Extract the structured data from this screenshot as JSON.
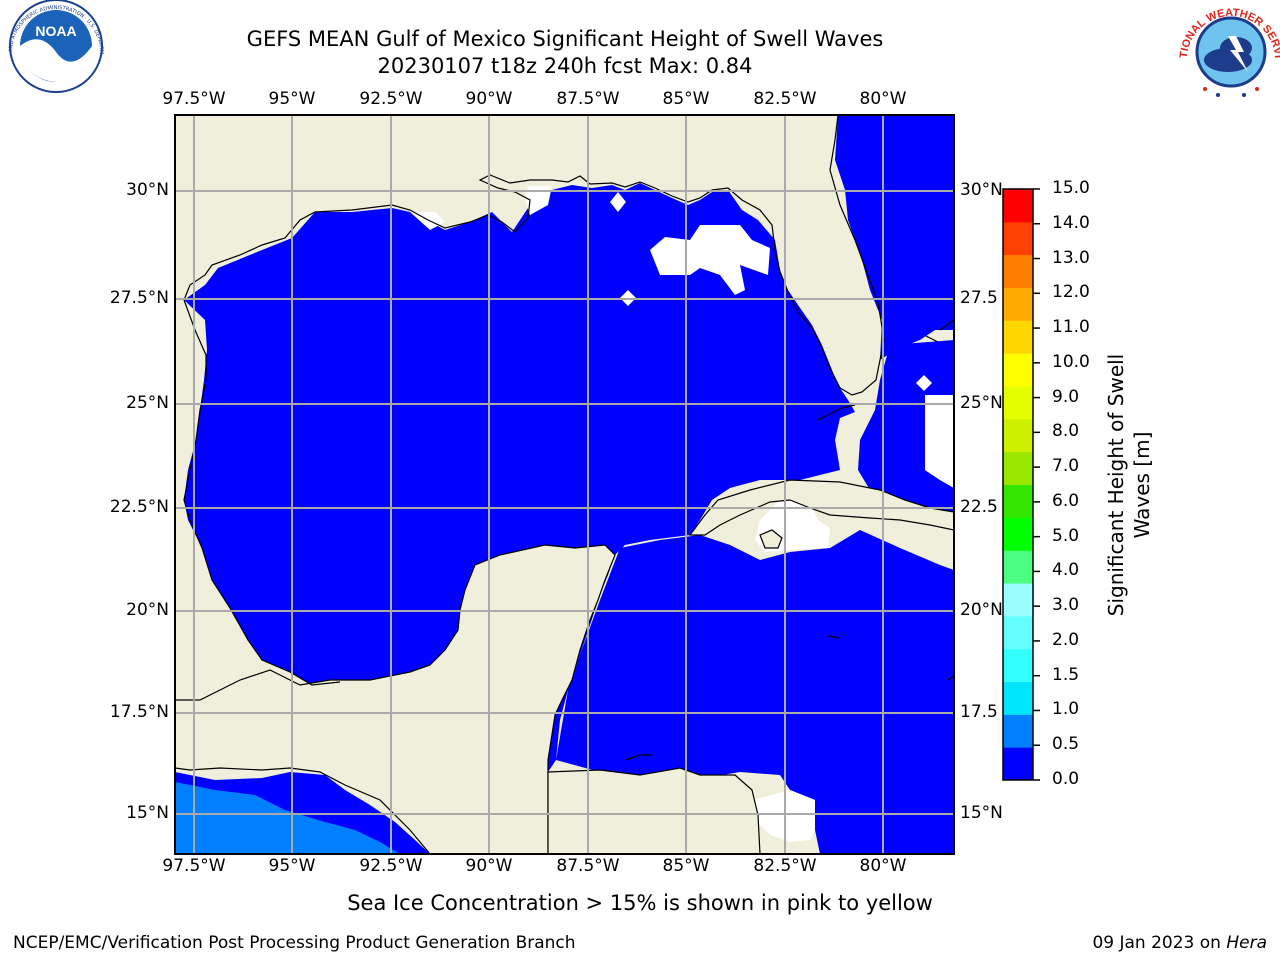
{
  "title": {
    "line1": "GEFS MEAN Gulf of Mexico Significant Height of Swell Waves",
    "line2": "20230107 t18z 240h fcst   Max: 0.84"
  },
  "logos": {
    "noaa": {
      "text": "NOAA",
      "ring_text": "NATIONAL OCEANIC AND ATMOSPHERIC ADMINISTRATION · U.S. DEPARTMENT OF COMMERCE"
    },
    "nws": {
      "ring_text": "NATIONAL WEATHER SERVICE"
    }
  },
  "map": {
    "lon_labels": [
      "97.5°W",
      "95°W",
      "92.5°W",
      "90°W",
      "87.5°W",
      "85°W",
      "82.5°W",
      "80°W"
    ],
    "lat_labels_left": [
      "30°N",
      "27.5°N",
      "25°N",
      "22.5°N",
      "20°N",
      "17.5°N",
      "15°N"
    ],
    "lat_labels_right": [
      "30°N",
      "27.5",
      "25°N",
      "22.5",
      "20°N",
      "17.5",
      "15°N"
    ],
    "lon_range": [
      -98,
      -78.2
    ],
    "lat_range": [
      14,
      32
    ],
    "colors": {
      "land": "#efefdc",
      "sea": "#0000ff",
      "grid": "#aaaaaa",
      "nodata": "#ffffff",
      "low_swell": "#0080ff"
    }
  },
  "colorbar": {
    "label_line1": "Significant Height of Swell",
    "label_line2": "Waves [m]",
    "ticks": [
      "15.0",
      "14.0",
      "13.0",
      "12.0",
      "11.0",
      "10.0",
      "9.0",
      "8.0",
      "7.0",
      "6.0",
      "5.0",
      "4.0",
      "3.0",
      "2.0",
      "1.5",
      "1.0",
      "0.5",
      "0.0"
    ],
    "colors": [
      "#0000ff",
      "#0080ff",
      "#00e6ff",
      "#33ffff",
      "#66ffff",
      "#99ffff",
      "#4dff80",
      "#00ff00",
      "#33e600",
      "#99e600",
      "#ccf000",
      "#e6ff00",
      "#ffff00",
      "#ffd700",
      "#ffaa00",
      "#ff8000",
      "#ff4000",
      "#ff0000"
    ]
  },
  "footer": {
    "note": "Sea Ice Concentration > 15% is shown in pink to yellow",
    "left": "NCEP/EMC/Verification Post Processing Product Generation Branch",
    "date": "09 Jan 2023 on ",
    "machine": "Hera"
  }
}
